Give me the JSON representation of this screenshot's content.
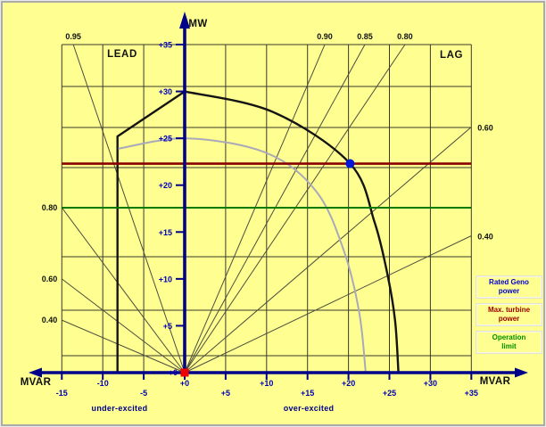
{
  "chart_data": {
    "type": "line",
    "x_axis": {
      "label": "MVAR",
      "range": [
        -15,
        35
      ],
      "ticks": [
        {
          "v": -15,
          "t": "-15"
        },
        {
          "v": -10,
          "t": "-10"
        },
        {
          "v": -5,
          "t": "-5"
        },
        {
          "v": 0,
          "t": "+0"
        },
        {
          "v": 5,
          "t": "+5"
        },
        {
          "v": 10,
          "t": "+10"
        },
        {
          "v": 15,
          "t": "+15"
        },
        {
          "v": 20,
          "t": "+20"
        },
        {
          "v": 25,
          "t": "+25"
        },
        {
          "v": 30,
          "t": "+30"
        },
        {
          "v": 35,
          "t": "+35"
        }
      ]
    },
    "y_axis": {
      "label": "MW",
      "range": [
        0,
        35
      ],
      "ticks": [
        {
          "v": 35,
          "t": "+35"
        },
        {
          "v": 30,
          "t": "+30"
        },
        {
          "v": 25,
          "t": "+25"
        },
        {
          "v": 20,
          "t": "+20"
        },
        {
          "v": 15,
          "t": "+15"
        },
        {
          "v": 10,
          "t": "+10"
        },
        {
          "v": 5,
          "t": "+5"
        }
      ],
      "zero_tick": "+0"
    },
    "quadrant_labels": {
      "lead": "LEAD",
      "lag": "LAG",
      "under_excited": "under-excited",
      "over_excited": "over-excited"
    },
    "pf_rays": [
      {
        "pf": "0.95",
        "side": "lead",
        "edge": "top",
        "end": [
          -13.6,
          35
        ]
      },
      {
        "pf": "0.80",
        "side": "lead",
        "edge": "left",
        "end": [
          -15,
          17.6
        ]
      },
      {
        "pf": "0.60",
        "side": "lead",
        "edge": "left",
        "end": [
          -15,
          10.0
        ]
      },
      {
        "pf": "0.40",
        "side": "lead",
        "edge": "left",
        "end": [
          -15,
          5.6
        ]
      },
      {
        "pf": "0.90",
        "side": "lag",
        "edge": "top",
        "end": [
          17.1,
          35
        ]
      },
      {
        "pf": "0.85",
        "side": "lag",
        "edge": "top",
        "end": [
          22.0,
          35
        ]
      },
      {
        "pf": "0.80",
        "side": "lag",
        "edge": "top",
        "end": [
          26.9,
          35
        ]
      },
      {
        "pf": "0.60",
        "side": "lag",
        "edge": "right",
        "end": [
          35,
          26.2
        ]
      },
      {
        "pf": "0.40",
        "side": "lag",
        "edge": "right",
        "end": [
          35,
          14.6
        ]
      }
    ],
    "series": [
      {
        "name": "generator-capability-limit",
        "color": "#141414",
        "width": 2.4,
        "segments": [
          {
            "mode": "line",
            "points": [
              [
                -8.2,
                0
              ],
              [
                -8.2,
                25.2
              ],
              [
                0,
                30
              ]
            ]
          },
          {
            "mode": "smooth",
            "points": [
              [
                0,
                30
              ],
              [
                10.8,
                27.8
              ],
              [
                20.2,
                22.3
              ],
              [
                23.2,
                16.0
              ],
              [
                24.8,
                10.3
              ],
              [
                25.7,
                5.5
              ],
              [
                26.1,
                0
              ]
            ]
          }
        ]
      },
      {
        "name": "rated-mva-curve",
        "color": "#a9a9ba",
        "width": 2,
        "segments": [
          {
            "mode": "smooth",
            "points": [
              [
                -8.1,
                23.9
              ],
              [
                0.3,
                25.0
              ],
              [
                10.1,
                23.4
              ],
              [
                16.1,
                19.3
              ],
              [
                19.4,
                13.1
              ],
              [
                21.3,
                6.5
              ],
              [
                22.1,
                0
              ]
            ]
          }
        ]
      }
    ],
    "limit_lines": [
      {
        "name": "Max. turbine power",
        "color": "#8b0000",
        "P": 22.3,
        "width": 2.6
      },
      {
        "name": "Operation limit",
        "color": "#007a00",
        "P": 17.6,
        "width": 2
      }
    ],
    "markers": [
      {
        "name": "origin-point",
        "shape": "square",
        "color": "#ee0000",
        "at": [
          0,
          0
        ],
        "size": 9
      },
      {
        "name": "rated-operating-point",
        "shape": "circle",
        "color": "#0018d8",
        "at": [
          20.2,
          22.3
        ],
        "size": 10
      }
    ],
    "legend": [
      {
        "line1": "Rated Geno",
        "line2": "power",
        "color": "#0000d0"
      },
      {
        "line1": "Max. turbine",
        "line2": "power",
        "color": "#a00000"
      },
      {
        "line1": "Operation",
        "line2": "limit",
        "color": "#009000"
      }
    ],
    "layout_hints": {
      "grid": true,
      "legend_position": "right",
      "background": "#feff90",
      "axis_color": "#00008b",
      "tick_text_color": "#0000b3",
      "grid_color": "#3a3a2e"
    }
  }
}
